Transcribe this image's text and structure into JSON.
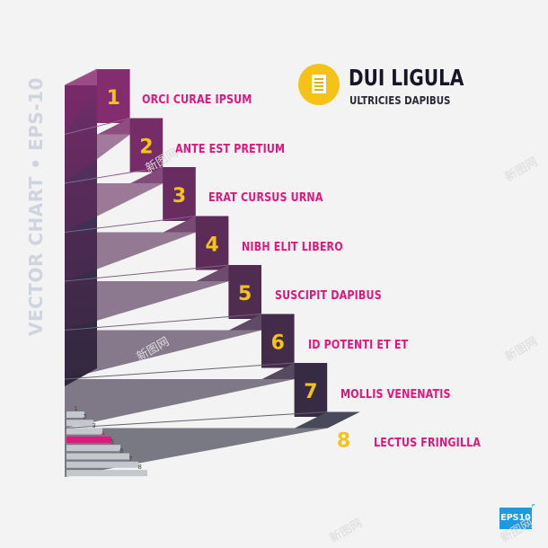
{
  "side_caption": "VECTOR CHART • EPS-10",
  "header": {
    "title": "DUI LIGULA",
    "subtitle": "ULTRICIES DAPIBUS",
    "icon": "document-icon"
  },
  "steps": [
    {
      "number": "1",
      "label": "ORCI CURAE IPSUM"
    },
    {
      "number": "2",
      "label": "ANTE EST PRETIUM"
    },
    {
      "number": "3",
      "label": "ERAT CURSUS URNA"
    },
    {
      "number": "4",
      "label": "NIBH ELIT LIBERO"
    },
    {
      "number": "5",
      "label": "SUSCIPIT DAPIBUS"
    },
    {
      "number": "6",
      "label": "ID POTENTI ET ET"
    },
    {
      "number": "7",
      "label": "MOLLIS VENENATIS"
    },
    {
      "number": "8",
      "label": "LECTUS FRINGILLA"
    }
  ],
  "mini_chart": {
    "numbers": [
      "1",
      "2",
      "3",
      "4",
      "5",
      "6",
      "7",
      "8"
    ],
    "highlighted_step": 4
  },
  "eps_badge": "EPS10",
  "watermark": "新图网",
  "colors": {
    "accent": "#e0177e",
    "number": "#f5c318",
    "badge": "#1e9be0",
    "top_block": "#8a2f74",
    "bottom_block": "#2b2d3e"
  }
}
